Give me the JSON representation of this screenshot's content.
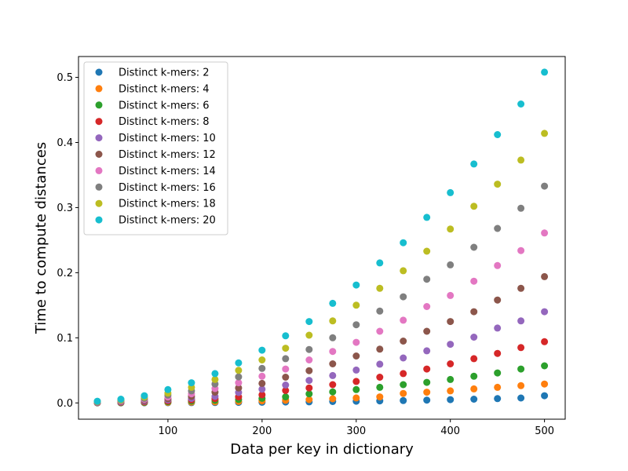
{
  "chart_data": {
    "type": "scatter",
    "title": "",
    "xlabel": "Data per key in dictionary",
    "ylabel": "Time to compute distances",
    "xlim": [
      5,
      522
    ],
    "ylim": [
      -0.025,
      0.532
    ],
    "x_ticks": [
      100,
      200,
      300,
      400,
      500
    ],
    "y_ticks": [
      0.0,
      0.1,
      0.2,
      0.3,
      0.4,
      0.5
    ],
    "x_tick_labels": [
      "100",
      "200",
      "300",
      "400",
      "500"
    ],
    "y_tick_labels": [
      "0.0",
      "0.1",
      "0.2",
      "0.3",
      "0.4",
      "0.5"
    ],
    "grid": false,
    "legend_position": "upper-left",
    "x": [
      25,
      50,
      75,
      100,
      125,
      150,
      175,
      200,
      225,
      250,
      275,
      300,
      325,
      350,
      375,
      400,
      425,
      450,
      475,
      500
    ],
    "series": [
      {
        "name": "Distinct k-mers: 2",
        "color": "#1f77b4",
        "values": [
          0.0001,
          0.0001,
          0.0002,
          0.0003,
          0.0004,
          0.0006,
          0.0008,
          0.0011,
          0.0014,
          0.0017,
          0.0021,
          0.0026,
          0.0031,
          0.0036,
          0.0043,
          0.005,
          0.0057,
          0.0066,
          0.0075,
          0.011
        ]
      },
      {
        "name": "Distinct k-mers: 4",
        "color": "#ff7f0e",
        "values": [
          0.0002,
          0.0003,
          0.0005,
          0.0008,
          0.0012,
          0.0017,
          0.0023,
          0.0031,
          0.004,
          0.0051,
          0.0063,
          0.0077,
          0.0092,
          0.0145,
          0.0165,
          0.0185,
          0.0215,
          0.024,
          0.0265,
          0.029
        ]
      },
      {
        "name": "Distinct k-mers: 6",
        "color": "#2ca02c",
        "values": [
          0.0003,
          0.0006,
          0.0011,
          0.0018,
          0.0027,
          0.0039,
          0.0053,
          0.0071,
          0.0092,
          0.014,
          0.017,
          0.0205,
          0.024,
          0.028,
          0.0315,
          0.036,
          0.041,
          0.046,
          0.052,
          0.057
        ]
      },
      {
        "name": "Distinct k-mers: 8",
        "color": "#d62728",
        "values": [
          0.0005,
          0.001,
          0.0018,
          0.003,
          0.0046,
          0.0066,
          0.0092,
          0.0125,
          0.019,
          0.023,
          0.028,
          0.033,
          0.0395,
          0.045,
          0.052,
          0.06,
          0.068,
          0.076,
          0.085,
          0.094
        ]
      },
      {
        "name": "Distinct k-mers: 10",
        "color": "#9467bd",
        "values": [
          0.0007,
          0.0015,
          0.0028,
          0.0046,
          0.007,
          0.01,
          0.016,
          0.021,
          0.0275,
          0.0345,
          0.042,
          0.0505,
          0.0595,
          0.069,
          0.08,
          0.09,
          0.101,
          0.115,
          0.126,
          0.14
        ]
      },
      {
        "name": "Distinct k-mers: 12",
        "color": "#8c564b",
        "values": [
          0.001,
          0.0021,
          0.004,
          0.0065,
          0.01,
          0.0165,
          0.023,
          0.03,
          0.0395,
          0.0495,
          0.06,
          0.072,
          0.0825,
          0.095,
          0.11,
          0.125,
          0.14,
          0.158,
          0.176,
          0.194
        ]
      },
      {
        "name": "Distinct k-mers: 14",
        "color": "#e377c2",
        "values": [
          0.0013,
          0.0029,
          0.0055,
          0.009,
          0.014,
          0.022,
          0.031,
          0.041,
          0.052,
          0.066,
          0.079,
          0.093,
          0.11,
          0.127,
          0.148,
          0.165,
          0.187,
          0.211,
          0.234,
          0.261
        ]
      },
      {
        "name": "Distinct k-mers: 16",
        "color": "#7f7f7f",
        "values": [
          0.0017,
          0.0038,
          0.007,
          0.012,
          0.0185,
          0.029,
          0.04,
          0.053,
          0.068,
          0.082,
          0.1,
          0.12,
          0.141,
          0.163,
          0.19,
          0.212,
          0.239,
          0.268,
          0.299,
          0.333
        ]
      },
      {
        "name": "Distinct k-mers: 18",
        "color": "#bcbd22",
        "values": [
          0.0021,
          0.0047,
          0.009,
          0.015,
          0.024,
          0.036,
          0.05,
          0.066,
          0.084,
          0.104,
          0.126,
          0.15,
          0.176,
          0.203,
          0.233,
          0.267,
          0.302,
          0.336,
          0.373,
          0.414
        ]
      },
      {
        "name": "Distinct k-mers: 20",
        "color": "#17becf",
        "values": [
          0.0026,
          0.0057,
          0.011,
          0.0205,
          0.031,
          0.045,
          0.0615,
          0.081,
          0.103,
          0.125,
          0.153,
          0.181,
          0.215,
          0.246,
          0.285,
          0.323,
          0.367,
          0.412,
          0.459,
          0.508
        ]
      }
    ]
  }
}
